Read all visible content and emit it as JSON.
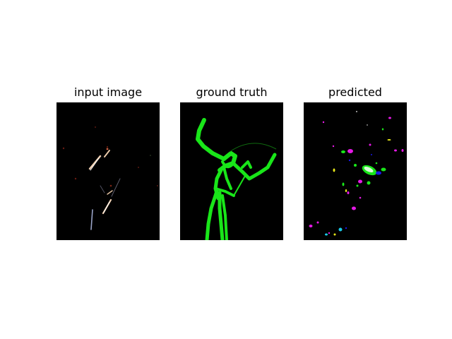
{
  "figure": {
    "panels": [
      {
        "title": "input image"
      },
      {
        "title": "ground truth"
      },
      {
        "title": "predicted"
      }
    ]
  },
  "colors": {
    "background": "#000000",
    "mask": "#19e619",
    "pred_magenta": "#e619e6",
    "pred_green": "#19e619",
    "pred_blue": "#1919e6",
    "pred_cyan": "#19c8e6",
    "pred_yellow": "#e6e619",
    "input_highlight": "#f2d2b4"
  }
}
